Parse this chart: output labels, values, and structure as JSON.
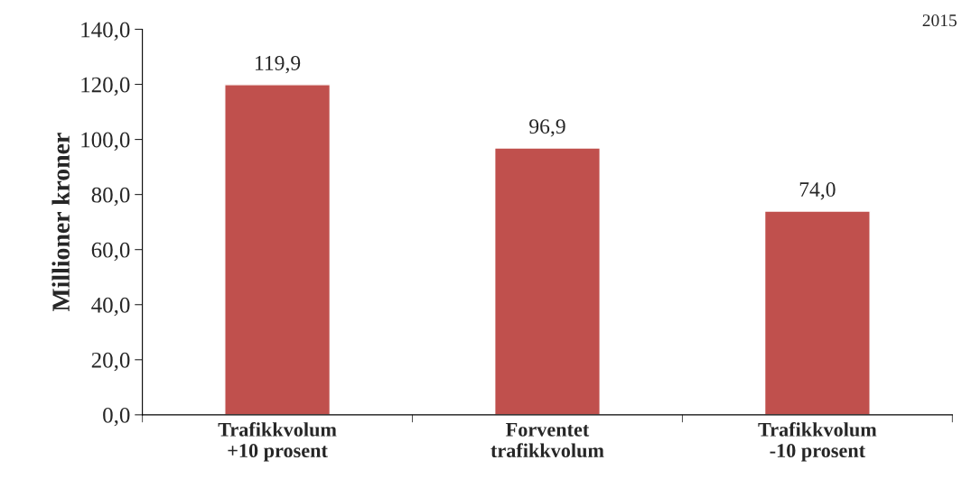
{
  "chart_data": {
    "type": "bar",
    "ylabel": "Millioner kroner",
    "categories": [
      "Trafikkvolum\n+10 prosent",
      "Forventet\ntrafikkvolum",
      "Trafikkvolum\n-10 prosent"
    ],
    "values": [
      119.9,
      96.9,
      74.0
    ],
    "color": "#c0504d",
    "value_labels": [
      "119,9",
      "96,9",
      "74,0"
    ],
    "ylim": [
      0,
      140
    ],
    "yticks": [
      {
        "value": 0,
        "label": "0,0"
      },
      {
        "value": 20,
        "label": "20,0"
      },
      {
        "value": 40,
        "label": "40,0"
      },
      {
        "value": 60,
        "label": "60,0"
      },
      {
        "value": 80,
        "label": "80,0"
      },
      {
        "value": 100,
        "label": "100,0"
      },
      {
        "value": 120,
        "label": "120,0"
      },
      {
        "value": 140,
        "label": "140,0"
      }
    ],
    "grid": false,
    "legend": false,
    "annotations": [
      "2015"
    ]
  }
}
